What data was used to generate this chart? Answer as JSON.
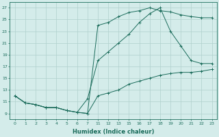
{
  "xlabel": "Humidex (Indice chaleur)",
  "bg_color": "#d4ecea",
  "grid_color": "#b0d0cc",
  "line_color": "#1a6b5a",
  "xtick_labels": [
    "0",
    "1",
    "2",
    "3",
    "4",
    "5",
    "6",
    "7",
    "11",
    "12",
    "13",
    "15",
    "16",
    "17",
    "18",
    "19",
    "20",
    "21",
    "22",
    "23"
  ],
  "ytick_labels": [
    "9",
    "11",
    "13",
    "15",
    "17",
    "19",
    "21",
    "23",
    "25",
    "27"
  ],
  "ytick_vals": [
    9,
    11,
    13,
    15,
    17,
    19,
    21,
    23,
    25,
    27
  ],
  "ylim": [
    8.0,
    28.0
  ],
  "curve1_x": [
    0,
    1,
    2,
    3,
    4,
    5,
    6,
    7,
    8,
    9,
    10,
    11,
    12,
    13,
    14,
    15,
    16,
    17,
    18,
    19
  ],
  "curve1_y": [
    12.0,
    10.8,
    10.5,
    10.0,
    10.0,
    9.5,
    9.2,
    9.0,
    24.0,
    24.5,
    25.5,
    26.2,
    26.5,
    27.0,
    26.5,
    26.3,
    25.8,
    25.5,
    25.3,
    25.3
  ],
  "curve2_x": [
    0,
    1,
    2,
    3,
    4,
    5,
    6,
    7,
    8,
    9,
    10,
    11,
    12,
    13,
    14,
    15,
    16,
    17,
    18,
    19
  ],
  "curve2_y": [
    12.0,
    10.8,
    10.5,
    10.0,
    10.0,
    9.5,
    9.2,
    11.5,
    18.0,
    19.5,
    21.0,
    22.5,
    24.5,
    26.0,
    27.0,
    23.0,
    20.5,
    18.0,
    17.5,
    17.5
  ],
  "curve3_x": [
    0,
    1,
    2,
    3,
    4,
    5,
    6,
    7,
    8,
    9,
    10,
    11,
    12,
    13,
    14,
    15,
    16,
    17,
    18,
    19
  ],
  "curve3_y": [
    12.0,
    10.8,
    10.5,
    10.0,
    10.0,
    9.5,
    9.2,
    9.0,
    12.0,
    12.5,
    13.0,
    14.0,
    14.5,
    15.0,
    15.5,
    15.8,
    16.0,
    16.0,
    16.2,
    16.5
  ]
}
